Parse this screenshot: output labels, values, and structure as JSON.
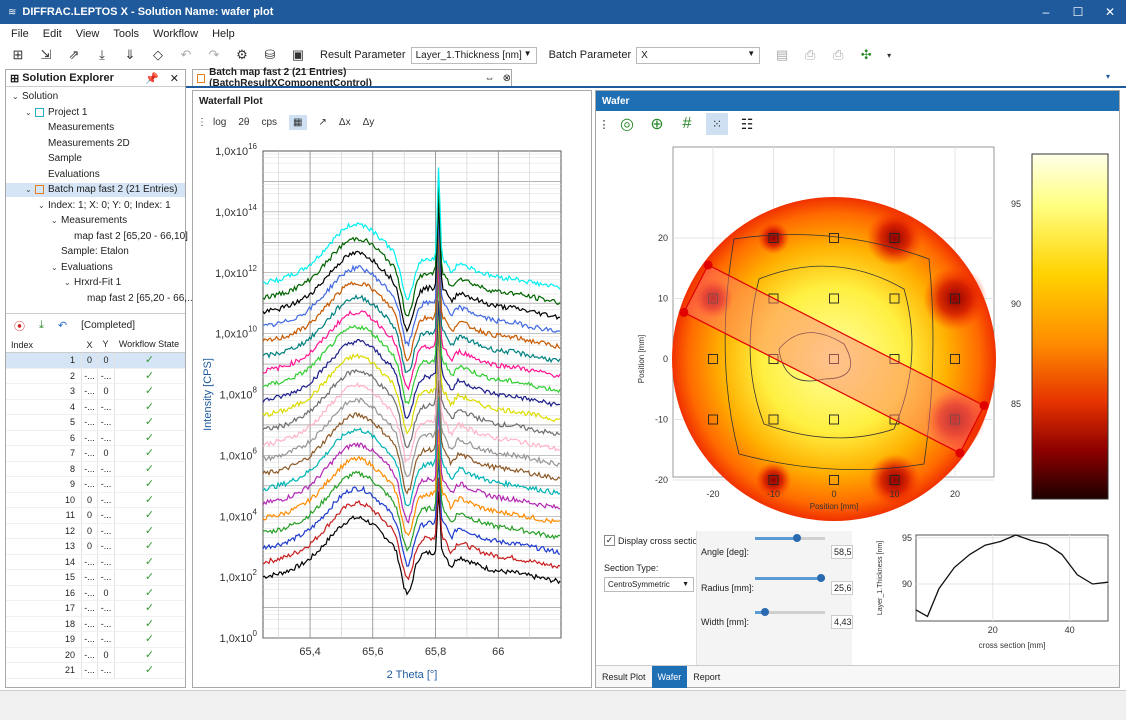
{
  "window": {
    "title": "DIFFRAC.LEPTOS X - Solution Name: wafer plot",
    "minimize": "–",
    "maximize": "☐",
    "close": "✕"
  },
  "menu": [
    "File",
    "Edit",
    "View",
    "Tools",
    "Workflow",
    "Help"
  ],
  "toolbar": {
    "result_label": "Result Parameter",
    "result_value": "Layer_1.Thickness [nm]",
    "batch_label": "Batch Parameter",
    "batch_value": "X"
  },
  "explorer": {
    "title": "Solution Explorer",
    "pin": "📌",
    "close": "✕",
    "tree": [
      {
        "label": "Solution",
        "level": 0,
        "expand": "⌄"
      },
      {
        "label": "Project 1",
        "level": 1,
        "expand": "⌄",
        "box": "#2ca8c9"
      },
      {
        "label": "Measurements",
        "level": 2
      },
      {
        "label": "Measurements 2D",
        "level": 2
      },
      {
        "label": "Sample",
        "level": 2
      },
      {
        "label": "Evaluations",
        "level": 2
      },
      {
        "label": "Batch map fast 2 (21 Entries)",
        "level": 1,
        "expand": "⌄",
        "box": "#e67e22",
        "selected": true
      },
      {
        "label": "Index: 1; X: 0; Y: 0; Index: 1",
        "level": 2,
        "expand": "⌄"
      },
      {
        "label": "Measurements",
        "level": 3,
        "expand": "⌄"
      },
      {
        "label": "map fast 2 [65,20 - 66,10]",
        "level": 4
      },
      {
        "label": "Sample: Etalon",
        "level": 3
      },
      {
        "label": "Evaluations",
        "level": 3,
        "expand": "⌄"
      },
      {
        "label": "Hrxrd-Fit 1",
        "level": 4,
        "expand": "⌄"
      },
      {
        "label": "map fast 2 [65,20 - 66,...",
        "level": 5
      }
    ],
    "status": "[Completed]",
    "columns": [
      "Index",
      "X",
      "Y",
      "Workflow State"
    ],
    "rows": [
      {
        "index": "1",
        "x": "0",
        "y": "0",
        "state": "✓"
      },
      {
        "index": "2",
        "x": "-...",
        "y": "-...",
        "state": "✓"
      },
      {
        "index": "3",
        "x": "-...",
        "y": "0",
        "state": "✓"
      },
      {
        "index": "4",
        "x": "-...",
        "y": "-...",
        "state": "✓"
      },
      {
        "index": "5",
        "x": "-...",
        "y": "-...",
        "state": "✓"
      },
      {
        "index": "6",
        "x": "-...",
        "y": "-...",
        "state": "✓"
      },
      {
        "index": "7",
        "x": "-...",
        "y": "0",
        "state": "✓"
      },
      {
        "index": "8",
        "x": "-...",
        "y": "-...",
        "state": "✓"
      },
      {
        "index": "9",
        "x": "-...",
        "y": "-...",
        "state": "✓"
      },
      {
        "index": "10",
        "x": "0",
        "y": "-...",
        "state": "✓"
      },
      {
        "index": "11",
        "x": "0",
        "y": "-...",
        "state": "✓"
      },
      {
        "index": "12",
        "x": "0",
        "y": "-...",
        "state": "✓"
      },
      {
        "index": "13",
        "x": "0",
        "y": "-...",
        "state": "✓"
      },
      {
        "index": "14",
        "x": "-...",
        "y": "-...",
        "state": "✓"
      },
      {
        "index": "15",
        "x": "-...",
        "y": "-...",
        "state": "✓"
      },
      {
        "index": "16",
        "x": "-...",
        "y": "0",
        "state": "✓"
      },
      {
        "index": "17",
        "x": "-...",
        "y": "-...",
        "state": "✓"
      },
      {
        "index": "18",
        "x": "-...",
        "y": "-...",
        "state": "✓"
      },
      {
        "index": "19",
        "x": "-...",
        "y": "-...",
        "state": "✓"
      },
      {
        "index": "20",
        "x": "-...",
        "y": "0",
        "state": "✓"
      },
      {
        "index": "21",
        "x": "-...",
        "y": "-...",
        "state": "✓"
      }
    ]
  },
  "document_tab": {
    "title": "Batch map fast 2 (21 Entries) (BatchResultXComponentControl)",
    "pin": "⇔",
    "close": "⊗"
  },
  "waterfall": {
    "title": "Waterfall Plot",
    "toolbar": [
      "log",
      "2θ",
      "cps",
      "▦",
      "↗",
      "Δx",
      "Δy"
    ]
  },
  "wafer": {
    "title": "Wafer",
    "display_cross_section": "Display cross section",
    "section_type_label": "Section Type:",
    "section_type_value": "CentroSymmetric",
    "angle_label": "Angle [deg]:",
    "angle_value": "58,5",
    "radius_label": "Radius [mm]:",
    "radius_value": "25,6",
    "width_label": "Width [mm]:",
    "width_value": "4,43",
    "bottom_tabs": [
      "Result Plot",
      "Wafer",
      "Report"
    ],
    "active_tab": "Wafer"
  },
  "chart_data": [
    {
      "type": "line",
      "title": "Waterfall Plot",
      "xlabel": "2 Theta [°]",
      "ylabel": "Intensity [CPS]",
      "xlim": [
        65.25,
        66.2
      ],
      "x_ticks": [
        "65,4",
        "65,6",
        "65,8",
        "66"
      ],
      "y_ticks": [
        "1,0x10^0",
        "1,0x10^2",
        "1,0x10^4",
        "1,0x10^6",
        "1,0x10^8",
        "1,0x10^10",
        "1,0x10^12",
        "1,0x10^14",
        "1,0x10^16"
      ],
      "y_scale": "log",
      "series_count": 21,
      "peak_x": 65.81,
      "colors": [
        "#000000",
        "#c81e1e",
        "#1e3ccd",
        "#28a028",
        "#ff8c00",
        "#b428b4",
        "#00b4b4",
        "#8c5a28",
        "#969696",
        "#ffb4c8",
        "#6e6e6e",
        "#dcdc00",
        "#1e1e8c",
        "#32cd32",
        "#ff1493",
        "#008080",
        "#c85a00",
        "#4169e1",
        "#000000",
        "#006400",
        "#00f0f0"
      ]
    },
    {
      "type": "heatmap",
      "xlabel": "Position [mm]",
      "ylabel": "Position [mm]",
      "x_ticks": [
        "-20",
        "-10",
        "0",
        "10",
        "20"
      ],
      "y_ticks": [
        "20",
        "10",
        "0",
        "-10",
        "-20"
      ],
      "colorbar_ticks": [
        "95",
        "90",
        "85"
      ],
      "measurement_points": [
        [
          -10,
          20
        ],
        [
          0,
          20
        ],
        [
          10,
          20
        ],
        [
          -20,
          10
        ],
        [
          -10,
          10
        ],
        [
          0,
          10
        ],
        [
          10,
          10
        ],
        [
          20,
          10
        ],
        [
          -20,
          0
        ],
        [
          -10,
          0
        ],
        [
          0,
          0
        ],
        [
          10,
          0
        ],
        [
          20,
          0
        ],
        [
          -20,
          -10
        ],
        [
          -10,
          -10
        ],
        [
          0,
          -10
        ],
        [
          10,
          -10
        ],
        [
          20,
          -10
        ],
        [
          -10,
          -20
        ],
        [
          0,
          -20
        ],
        [
          10,
          -20
        ]
      ]
    },
    {
      "type": "line",
      "xlabel": "cross section [mm]",
      "ylabel": "Layer_1.Thickness [nm]",
      "x_ticks": [
        "20",
        "40"
      ],
      "y_ticks": [
        "95",
        "90"
      ],
      "x": [
        0,
        3,
        6,
        10,
        14,
        18,
        22,
        26,
        30,
        34,
        38,
        42,
        46,
        50
      ],
      "y": [
        87.2,
        86.5,
        89.5,
        91.8,
        93.2,
        94.2,
        94.6,
        95.3,
        94.7,
        94.3,
        93.2,
        91.0,
        90.0,
        90.2
      ]
    }
  ]
}
